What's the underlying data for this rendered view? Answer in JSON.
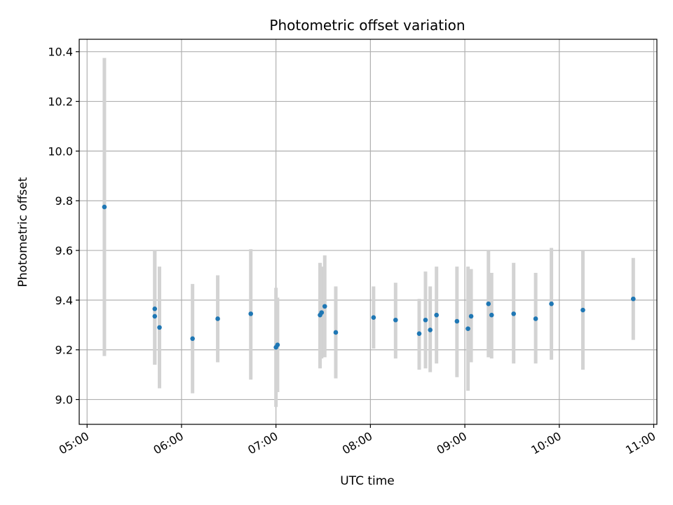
{
  "chart_data": {
    "type": "scatter",
    "title": "Photometric offset variation",
    "xlabel": "UTC time",
    "ylabel": "Photometric offset",
    "x_ticks": [
      "05:00",
      "06:00",
      "07:00",
      "08:00",
      "09:00",
      "10:00",
      "11:00"
    ],
    "y_ticks": [
      "9.0",
      "9.2",
      "9.4",
      "9.6",
      "9.8",
      "10.0",
      "10.2",
      "10.4"
    ],
    "xlim": [
      "04:55",
      "11:02"
    ],
    "ylim": [
      8.9,
      10.45
    ],
    "grid": true,
    "colors": {
      "point": "#1f77b4",
      "errorbar": "#d3d3d3",
      "grid": "#b0b0b0"
    },
    "series": [
      {
        "points": [
          {
            "x": "05:11",
            "y": 9.775,
            "lo": 9.175,
            "hi": 10.375
          },
          {
            "x": "05:43",
            "y": 9.365,
            "lo": 9.14,
            "hi": 9.6
          },
          {
            "x": "05:43",
            "y": 9.335,
            "lo": 9.14,
            "hi": 9.6
          },
          {
            "x": "05:46",
            "y": 9.29,
            "lo": 9.045,
            "hi": 9.535
          },
          {
            "x": "06:07",
            "y": 9.245,
            "lo": 9.025,
            "hi": 9.465
          },
          {
            "x": "06:23",
            "y": 9.325,
            "lo": 9.15,
            "hi": 9.5
          },
          {
            "x": "06:44",
            "y": 9.345,
            "lo": 9.08,
            "hi": 9.605
          },
          {
            "x": "07:00",
            "y": 9.21,
            "lo": 8.97,
            "hi": 9.45
          },
          {
            "x": "07:01",
            "y": 9.22,
            "lo": 9.03,
            "hi": 9.41
          },
          {
            "x": "07:28",
            "y": 9.34,
            "lo": 9.125,
            "hi": 9.55
          },
          {
            "x": "07:29",
            "y": 9.35,
            "lo": 9.165,
            "hi": 9.535
          },
          {
            "x": "07:31",
            "y": 9.375,
            "lo": 9.17,
            "hi": 9.58
          },
          {
            "x": "07:38",
            "y": 9.27,
            "lo": 9.085,
            "hi": 9.455
          },
          {
            "x": "08:02",
            "y": 9.33,
            "lo": 9.205,
            "hi": 9.455
          },
          {
            "x": "08:16",
            "y": 9.32,
            "lo": 9.165,
            "hi": 9.47
          },
          {
            "x": "08:31",
            "y": 9.265,
            "lo": 9.12,
            "hi": 9.405
          },
          {
            "x": "08:35",
            "y": 9.32,
            "lo": 9.125,
            "hi": 9.515
          },
          {
            "x": "08:38",
            "y": 9.28,
            "lo": 9.11,
            "hi": 9.455
          },
          {
            "x": "08:42",
            "y": 9.34,
            "lo": 9.145,
            "hi": 9.535
          },
          {
            "x": "08:55",
            "y": 9.315,
            "lo": 9.09,
            "hi": 9.535
          },
          {
            "x": "09:02",
            "y": 9.285,
            "lo": 9.035,
            "hi": 9.535
          },
          {
            "x": "09:04",
            "y": 9.335,
            "lo": 9.15,
            "hi": 9.525
          },
          {
            "x": "09:15",
            "y": 9.385,
            "lo": 9.17,
            "hi": 9.6
          },
          {
            "x": "09:17",
            "y": 9.34,
            "lo": 9.165,
            "hi": 9.51
          },
          {
            "x": "09:31",
            "y": 9.345,
            "lo": 9.145,
            "hi": 9.55
          },
          {
            "x": "09:45",
            "y": 9.325,
            "lo": 9.145,
            "hi": 9.51
          },
          {
            "x": "09:55",
            "y": 9.385,
            "lo": 9.16,
            "hi": 9.61
          },
          {
            "x": "10:15",
            "y": 9.36,
            "lo": 9.12,
            "hi": 9.6
          },
          {
            "x": "10:47",
            "y": 9.405,
            "lo": 9.24,
            "hi": 9.57
          }
        ]
      }
    ]
  }
}
